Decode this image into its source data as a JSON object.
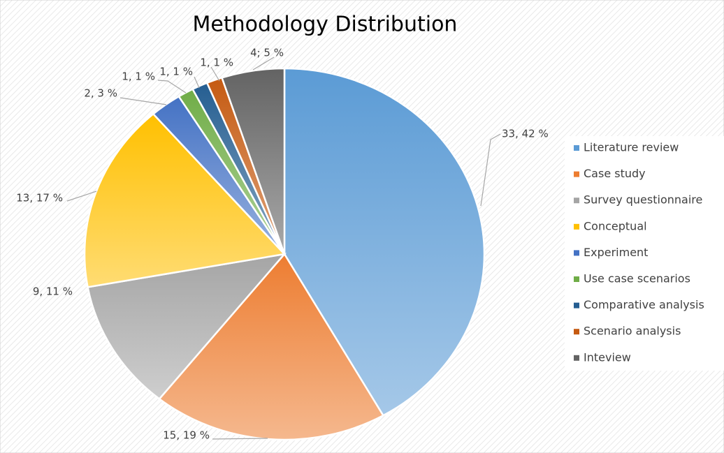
{
  "chart_data": {
    "type": "pie",
    "title": "Methodology Distribution",
    "categories": [
      "Literature review",
      "Case study",
      "Survey questionnaire",
      "Conceptual",
      "Experiment",
      "Use case scenarios",
      "Comparative analysis",
      "Scenario analysis",
      "Inteview"
    ],
    "values": [
      33,
      15,
      9,
      13,
      2,
      1,
      1,
      1,
      4
    ],
    "value_labels": [
      "33, 42 %",
      "15, 19 %",
      "9, 11 %",
      "13, 17 %",
      "2, 3 %",
      "1, 1 %",
      "1, 1 %",
      "1, 1 %",
      "4; 5 %"
    ],
    "colors": [
      "#5b9bd5",
      "#ed7d31",
      "#a5a5a5",
      "#ffc000",
      "#4472c4",
      "#70ad47",
      "#255e91",
      "#c55a11",
      "#636363"
    ],
    "legend": "right"
  }
}
